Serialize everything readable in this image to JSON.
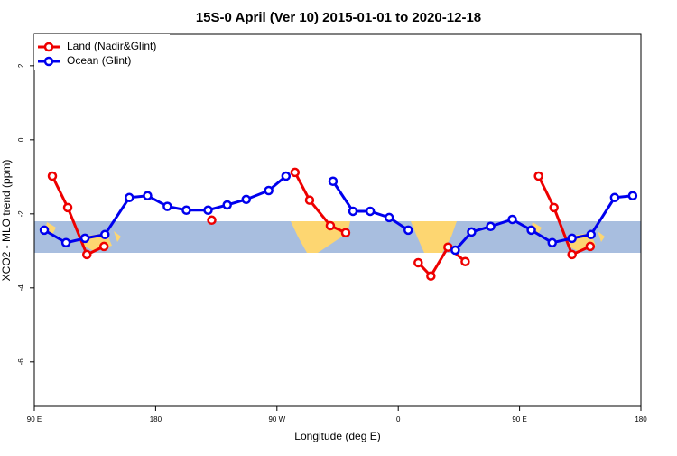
{
  "chart_data": {
    "type": "line",
    "title": "15S-0 April (Ver 10)   2015-01-01 to 2020-12-18",
    "xlabel": "Longitude (deg E)",
    "ylabel": "XCO2 - MLO trend (ppm)",
    "xlim": [
      90,
      540
    ],
    "ylim": [
      -7.2,
      2.85
    ],
    "xticks": [
      {
        "value": 90,
        "label": "90 E"
      },
      180,
      {
        "value": 270,
        "label": "90 W"
      },
      {
        "value": 360,
        "label": "0"
      },
      {
        "value": 450,
        "label": "90 E"
      },
      {
        "value": 540,
        "label": "180"
      }
    ],
    "yticks": [
      2,
      0,
      -2,
      -4,
      -6
    ],
    "legend": "top-left",
    "series": [
      {
        "name": "Land (Nadir&Glint)",
        "color": "#ee0000",
        "x": [
          103.4,
          114.8,
          129,
          141.7,
          null,
          221.6,
          null,
          283.4,
          294.2,
          309.6,
          321,
          null,
          374.8,
          384.2,
          396.9,
          409.7,
          null,
          464.1,
          475.5,
          488.9,
          502.4
        ],
        "values": [
          -0.98,
          -1.83,
          -3.1,
          -2.88,
          null,
          -2.17,
          null,
          -0.88,
          -1.63,
          -2.32,
          -2.51,
          null,
          -3.32,
          -3.68,
          -2.9,
          -3.29,
          null,
          -0.98,
          -1.83,
          -3.1,
          -2.88
        ]
      },
      {
        "name": "Ocean (Glint)",
        "color": "#0000ee",
        "x": [
          97.4,
          113.5,
          127.6,
          142.4,
          160.5,
          174,
          188.7,
          202.8,
          218.9,
          233.1,
          247.2,
          263.9,
          276.7,
          null,
          311.6,
          326.4,
          339.2,
          353.3,
          367.4,
          null,
          402.3,
          414.4,
          428.5,
          444.6,
          458.7,
          474.2,
          488.9,
          503,
          520.5,
          533.9
        ],
        "values": [
          -2.44,
          -2.78,
          -2.66,
          -2.56,
          -1.56,
          -1.51,
          -1.8,
          -1.9,
          -1.9,
          -1.76,
          -1.61,
          -1.37,
          -0.98,
          null,
          -1.12,
          -1.93,
          -1.93,
          -2.1,
          -2.44,
          null,
          -2.98,
          -2.49,
          -2.34,
          -2.15,
          -2.44,
          -2.78,
          -2.66,
          -2.56,
          -1.56,
          -1.51
        ]
      }
    ]
  }
}
